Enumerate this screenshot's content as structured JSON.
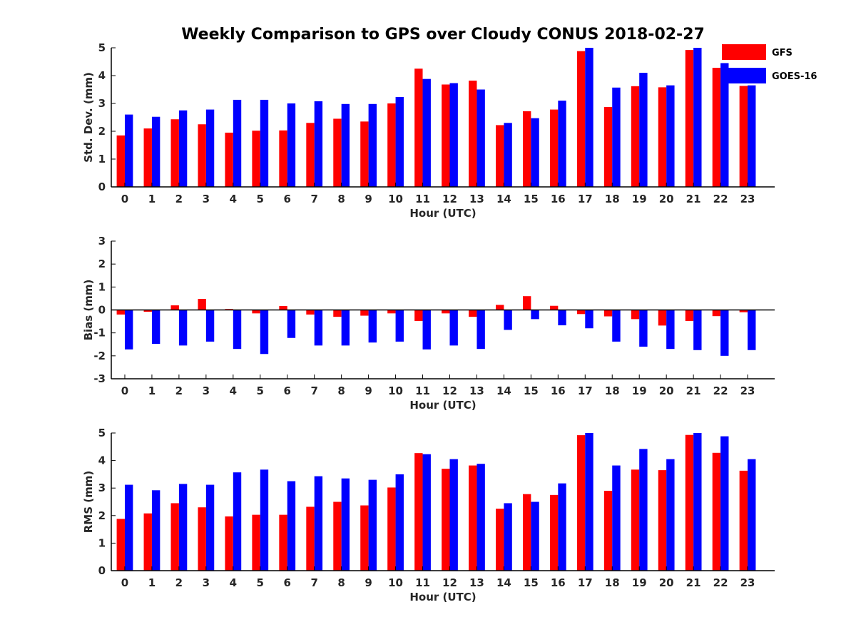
{
  "chart_data": {
    "type": "bar",
    "title": "Weekly Comparison to GPS over Cloudy CONUS 2018-02-27",
    "legend": {
      "position": "top-right",
      "entries": [
        {
          "name": "GFS",
          "color": "#ff0000"
        },
        {
          "name": "GOES-16",
          "color": "#0000ff"
        }
      ]
    },
    "panels": [
      {
        "ylabel": "Std. Dev. (mm)",
        "xlabel": "Hour (UTC)",
        "ylim": [
          0,
          5
        ],
        "yticks": [
          0,
          1,
          2,
          3,
          4,
          5
        ],
        "zero_line": false,
        "categories": [
          "0",
          "1",
          "2",
          "3",
          "4",
          "5",
          "6",
          "7",
          "8",
          "9",
          "10",
          "11",
          "12",
          "13",
          "14",
          "15",
          "16",
          "17",
          "18",
          "19",
          "20",
          "21",
          "22",
          "23"
        ],
        "series": [
          {
            "name": "GFS",
            "values": [
              1.85,
              2.1,
              2.43,
              2.25,
              1.95,
              2.02,
              2.03,
              2.3,
              2.45,
              2.35,
              3.0,
              4.25,
              3.68,
              3.82,
              2.22,
              2.72,
              2.78,
              4.88,
              2.87,
              3.62,
              3.58,
              4.92,
              4.28,
              3.63
            ]
          },
          {
            "name": "GOES-16",
            "values": [
              2.6,
              2.52,
              2.75,
              2.78,
              3.13,
              3.13,
              3.0,
              3.08,
              2.98,
              2.98,
              3.23,
              3.88,
              3.73,
              3.5,
              2.3,
              2.47,
              3.1,
              5.0,
              3.57,
              4.1,
              3.65,
              5.0,
              4.45,
              3.65
            ]
          }
        ]
      },
      {
        "ylabel": "Bias (mm)",
        "xlabel": "Hour (UTC)",
        "ylim": [
          -3,
          3
        ],
        "yticks": [
          -3,
          -2,
          -1,
          0,
          1,
          2,
          3
        ],
        "zero_line": true,
        "categories": [
          "0",
          "1",
          "2",
          "3",
          "4",
          "5",
          "6",
          "7",
          "8",
          "9",
          "10",
          "11",
          "12",
          "13",
          "14",
          "15",
          "16",
          "17",
          "18",
          "19",
          "20",
          "21",
          "22",
          "23"
        ],
        "series": [
          {
            "name": "GFS",
            "values": [
              -0.2,
              -0.08,
              0.2,
              0.48,
              0.04,
              -0.15,
              0.17,
              -0.2,
              -0.3,
              -0.25,
              -0.15,
              -0.48,
              -0.15,
              -0.3,
              0.22,
              0.6,
              0.18,
              -0.18,
              -0.28,
              -0.4,
              -0.68,
              -0.48,
              -0.27,
              -0.1
            ]
          },
          {
            "name": "GOES-16",
            "values": [
              -1.72,
              -1.48,
              -1.55,
              -1.38,
              -1.7,
              -1.92,
              -1.22,
              -1.55,
              -1.55,
              -1.42,
              -1.38,
              -1.72,
              -1.55,
              -1.7,
              -0.87,
              -0.4,
              -0.67,
              -0.8,
              -1.38,
              -1.6,
              -1.7,
              -1.75,
              -2.0,
              -1.75
            ]
          }
        ]
      },
      {
        "ylabel": "RMS (mm)",
        "xlabel": "Hour (UTC)",
        "ylim": [
          0,
          5
        ],
        "yticks": [
          0,
          1,
          2,
          3,
          4,
          5
        ],
        "zero_line": false,
        "categories": [
          "0",
          "1",
          "2",
          "3",
          "4",
          "5",
          "6",
          "7",
          "8",
          "9",
          "10",
          "11",
          "12",
          "13",
          "14",
          "15",
          "16",
          "17",
          "18",
          "19",
          "20",
          "21",
          "22",
          "23"
        ],
        "series": [
          {
            "name": "GFS",
            "values": [
              1.88,
              2.08,
              2.45,
              2.3,
              1.97,
              2.03,
              2.03,
              2.32,
              2.5,
              2.37,
              3.02,
              4.27,
              3.7,
              3.82,
              2.25,
              2.78,
              2.75,
              4.92,
              2.9,
              3.67,
              3.65,
              4.93,
              4.28,
              3.63
            ]
          },
          {
            "name": "GOES-16",
            "values": [
              3.12,
              2.92,
              3.15,
              3.12,
              3.57,
              3.67,
              3.25,
              3.43,
              3.35,
              3.3,
              3.5,
              4.23,
              4.05,
              3.88,
              2.45,
              2.5,
              3.17,
              5.0,
              3.82,
              4.42,
              4.05,
              5.0,
              4.88,
              4.05
            ]
          }
        ]
      }
    ]
  }
}
